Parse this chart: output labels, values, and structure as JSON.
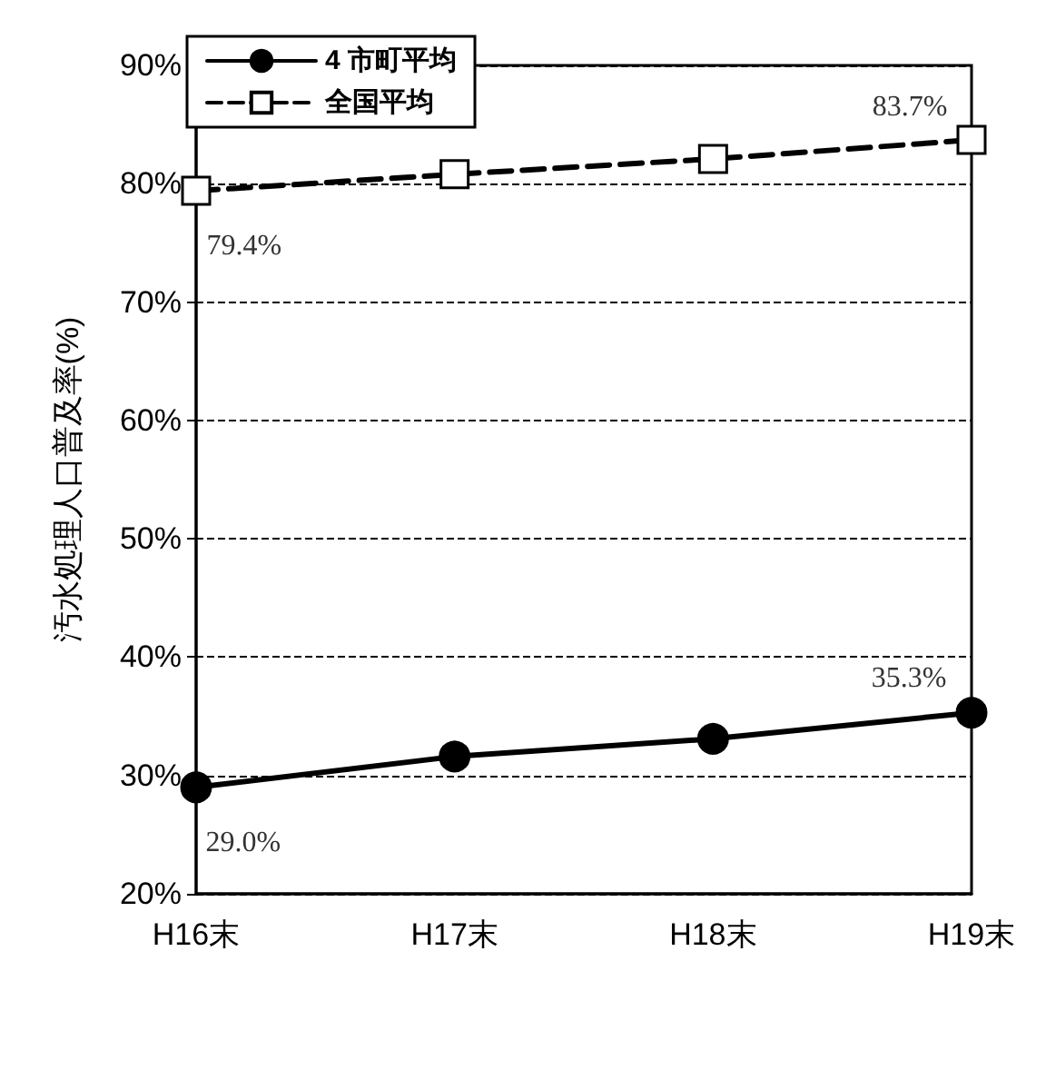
{
  "chart_data": {
    "type": "line",
    "ylabel": "汚水処理人口普及率(%)",
    "categories": [
      "H16末",
      "H17末",
      "H18末",
      "H19末"
    ],
    "series": [
      {
        "name": "4 市町平均",
        "color": "#000000",
        "marker": "circle",
        "line_style": "solid",
        "values": [
          29.0,
          31.6,
          33.1,
          35.3
        ],
        "value_labels": [
          "29.0%",
          null,
          null,
          "35.3%"
        ]
      },
      {
        "name": "全国平均",
        "color": "#000000",
        "marker": "square",
        "line_style": "dashed",
        "values": [
          79.4,
          80.8,
          82.1,
          83.7
        ],
        "value_labels": [
          "79.4%",
          null,
          null,
          "83.7%"
        ]
      }
    ],
    "ylim": [
      20,
      90
    ],
    "yticks": [
      {
        "value": 20,
        "label": "20%"
      },
      {
        "value": 30,
        "label": "30%"
      },
      {
        "value": 40,
        "label": "40%"
      },
      {
        "value": 50,
        "label": "50%"
      },
      {
        "value": 60,
        "label": "60%"
      },
      {
        "value": 70,
        "label": "70%"
      },
      {
        "value": 80,
        "label": "80%"
      },
      {
        "value": 90,
        "label": "90%"
      }
    ],
    "grid": "y",
    "legend": "top left"
  }
}
